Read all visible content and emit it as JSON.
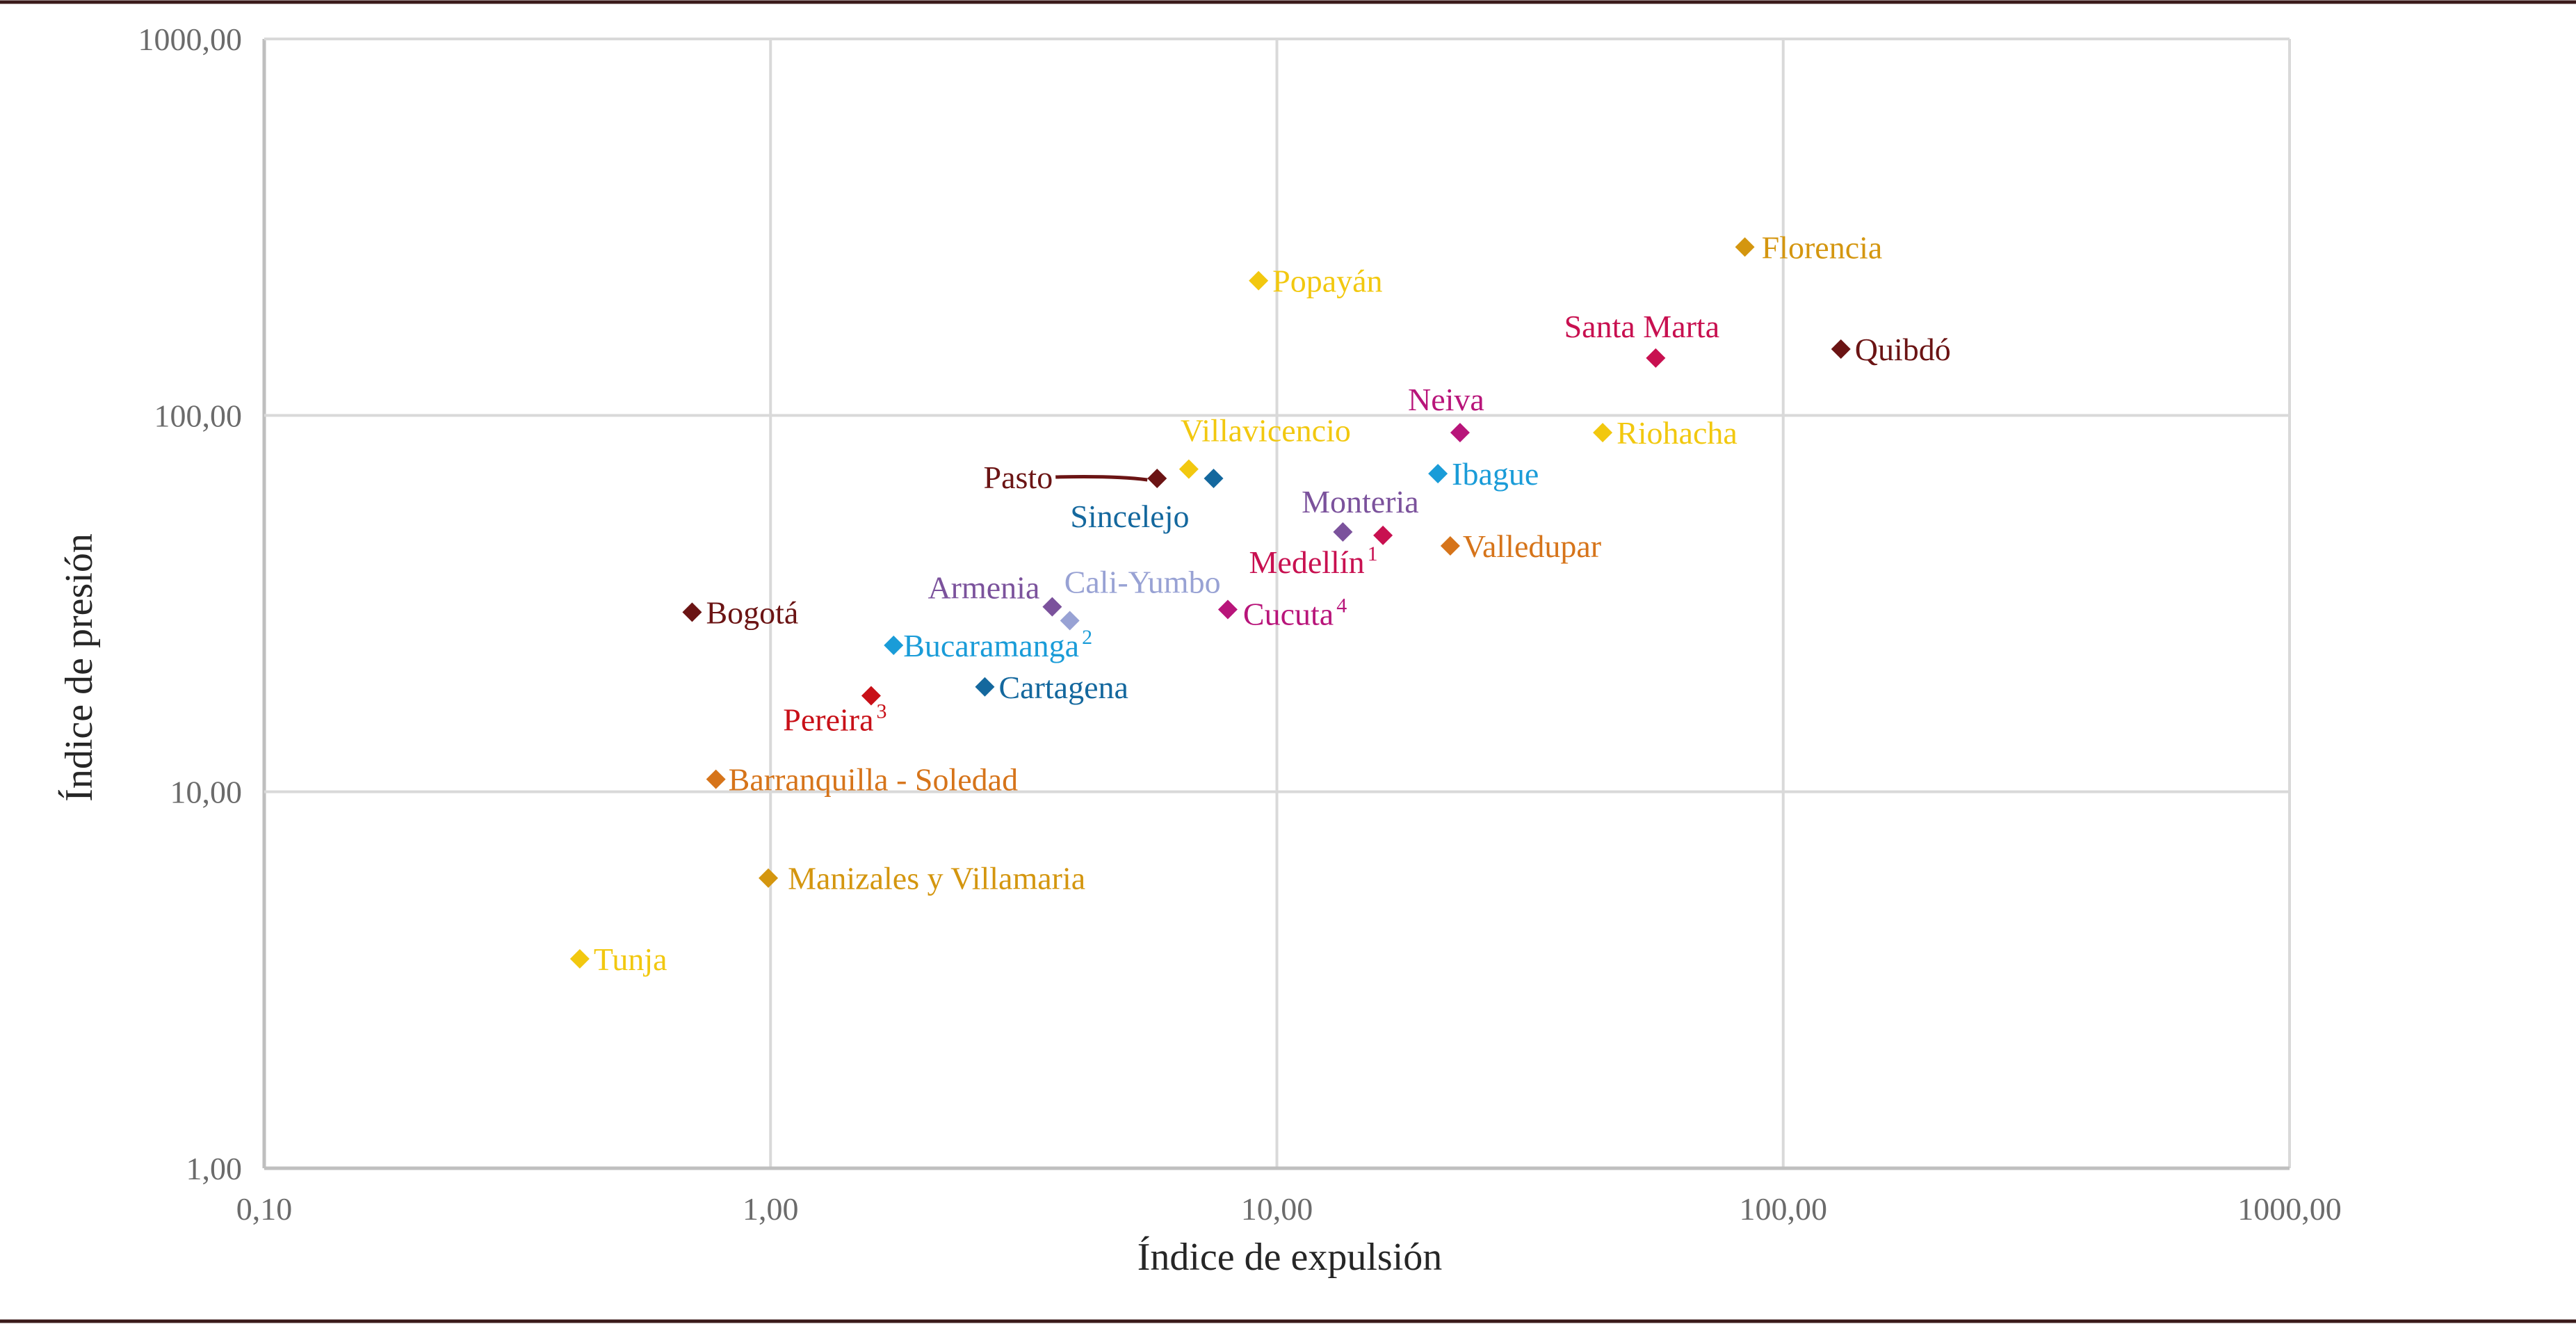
{
  "chart_data": {
    "type": "scatter",
    "xlabel": "Índice de expulsión",
    "ylabel": "Índice de presión",
    "xscale": "log",
    "yscale": "log",
    "xlim": [
      0.1,
      1000
    ],
    "ylim": [
      1,
      1000
    ],
    "grid": true,
    "x_tick_labels": [
      "0,10",
      "1,00",
      "10,00",
      "100,00",
      "1000,00"
    ],
    "y_tick_labels": [
      "1,00",
      "10,00",
      "100,00",
      "1000,00"
    ],
    "points": [
      {
        "label": "Florencia",
        "sup": "",
        "x": 84,
        "y": 280,
        "color": "#d4960f"
      },
      {
        "label": "Popayán",
        "sup": "",
        "x": 9.2,
        "y": 228,
        "color": "#f2c80f"
      },
      {
        "label": "Santa Marta",
        "sup": "",
        "x": 56,
        "y": 142,
        "color": "#c81050"
      },
      {
        "label": "Quibdó",
        "sup": "",
        "x": 130,
        "y": 150,
        "color": "#6b1414"
      },
      {
        "label": "Neiva",
        "sup": "",
        "x": 23,
        "y": 90,
        "color": "#b8157a"
      },
      {
        "label": "Riohacha",
        "sup": "",
        "x": 44,
        "y": 90,
        "color": "#f2c80f"
      },
      {
        "label": "Villavicencio",
        "sup": "",
        "x": 6.7,
        "y": 72,
        "color": "#f2c80f"
      },
      {
        "label": "Pasto",
        "sup": "",
        "x": 5.8,
        "y": 68,
        "color": "#6b1414"
      },
      {
        "label": "Sincelejo",
        "sup": "",
        "x": 7.5,
        "y": 68,
        "color": "#14689e"
      },
      {
        "label": "Ibague",
        "sup": "",
        "x": 20.8,
        "y": 70,
        "color": "#1a9cd8"
      },
      {
        "label": "Monteria",
        "sup": "",
        "x": 13.5,
        "y": 49,
        "color": "#7b529c"
      },
      {
        "label": "Medellín",
        "sup": "1",
        "x": 16.2,
        "y": 48,
        "color": "#c81050"
      },
      {
        "label": "Valledupar",
        "sup": "",
        "x": 22,
        "y": 45,
        "color": "#d6741a"
      },
      {
        "label": "Armenia",
        "sup": "",
        "x": 3.6,
        "y": 31,
        "color": "#7b529c"
      },
      {
        "label": "Cali-Yumbo",
        "sup": "",
        "x": 3.9,
        "y": 28.5,
        "color": "#98a2d4"
      },
      {
        "label": "Cucuta",
        "sup": "4",
        "x": 8.0,
        "y": 30.5,
        "color": "#b8157a"
      },
      {
        "label": "Bogotá",
        "sup": "",
        "x": 0.7,
        "y": 30,
        "color": "#6b1414"
      },
      {
        "label": "Bucaramanga",
        "sup": "2",
        "x": 1.75,
        "y": 24.5,
        "color": "#1a9cd8"
      },
      {
        "label": "Cartagena",
        "sup": "",
        "x": 2.65,
        "y": 19,
        "color": "#14689e"
      },
      {
        "label": "Pereira",
        "sup": "3",
        "x": 1.58,
        "y": 18,
        "color": "#c81018"
      },
      {
        "label": "Barranquilla - Soledad",
        "sup": "",
        "x": 0.78,
        "y": 10.8,
        "color": "#d6741a"
      },
      {
        "label": "Manizales y Villamaria",
        "sup": "",
        "x": 0.99,
        "y": 5.9,
        "color": "#d4960f"
      },
      {
        "label": "Tunja",
        "sup": "",
        "x": 0.42,
        "y": 3.6,
        "color": "#f2c80f"
      }
    ]
  }
}
